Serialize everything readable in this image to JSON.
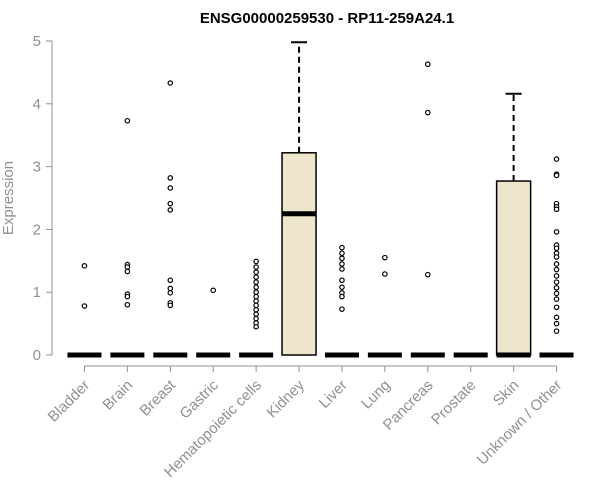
{
  "chart_data": {
    "type": "box",
    "title": "ENSG00000259530 - RP11-259A24.1",
    "xlabel": "",
    "ylabel": "Expression",
    "ylim": [
      0,
      5
    ],
    "yticks": [
      0,
      1,
      2,
      3,
      4,
      5
    ],
    "box_color": "#ede5cc",
    "categories": [
      "Bladder",
      "Brain",
      "Breast",
      "Gastric",
      "Hematopoietic cells",
      "Kidney",
      "Liver",
      "Lung",
      "Pancreas",
      "Prostate",
      "Skin",
      "Unknown / Other"
    ],
    "boxes": [
      {
        "name": "Bladder",
        "q1": 0,
        "median": 0,
        "q3": 0,
        "whisker_low": 0,
        "whisker_high": 0,
        "outliers": [
          1.42,
          0.78
        ]
      },
      {
        "name": "Brain",
        "q1": 0,
        "median": 0,
        "q3": 0,
        "whisker_low": 0,
        "whisker_high": 0,
        "outliers": [
          3.73,
          1.44,
          1.4,
          1.33,
          0.97,
          0.93,
          0.8
        ]
      },
      {
        "name": "Breast",
        "q1": 0,
        "median": 0,
        "q3": 0,
        "whisker_low": 0,
        "whisker_high": 0,
        "outliers": [
          4.33,
          2.82,
          2.66,
          2.41,
          2.31,
          1.19,
          1.06,
          0.99,
          0.83,
          0.79
        ]
      },
      {
        "name": "Gastric",
        "q1": 0,
        "median": 0,
        "q3": 0,
        "whisker_low": 0,
        "whisker_high": 0,
        "outliers": [
          1.03
        ]
      },
      {
        "name": "Hematopoietic cells",
        "q1": 0,
        "median": 0,
        "q3": 0,
        "whisker_low": 0,
        "whisker_high": 0,
        "outliers": [
          1.49,
          1.4,
          1.32,
          1.24,
          1.16,
          1.08,
          1.0,
          0.93,
          0.86,
          0.79,
          0.72,
          0.65,
          0.58,
          0.51,
          0.45
        ]
      },
      {
        "name": "Kidney",
        "q1": 0,
        "median": 2.25,
        "q3": 3.22,
        "whisker_low": 0,
        "whisker_high": 4.98,
        "outliers": []
      },
      {
        "name": "Liver",
        "q1": 0,
        "median": 0,
        "q3": 0,
        "whisker_low": 0,
        "whisker_high": 0,
        "outliers": [
          1.71,
          1.62,
          1.54,
          1.45,
          1.37,
          1.19,
          1.08,
          0.99,
          0.93,
          0.73
        ]
      },
      {
        "name": "Lung",
        "q1": 0,
        "median": 0,
        "q3": 0,
        "whisker_low": 0,
        "whisker_high": 0,
        "outliers": [
          1.55,
          1.29
        ]
      },
      {
        "name": "Pancreas",
        "q1": 0,
        "median": 0,
        "q3": 0,
        "whisker_low": 0,
        "whisker_high": 0,
        "outliers": [
          4.63,
          3.86,
          1.28
        ]
      },
      {
        "name": "Prostate",
        "q1": 0,
        "median": 0,
        "q3": 0,
        "whisker_low": 0,
        "whisker_high": 0,
        "outliers": []
      },
      {
        "name": "Skin",
        "q1": 0,
        "median": 0,
        "q3": 2.77,
        "whisker_low": 0,
        "whisker_high": 4.16,
        "outliers": []
      },
      {
        "name": "Unknown / Other",
        "q1": 0,
        "median": 0,
        "q3": 0,
        "whisker_low": 0,
        "whisker_high": 0,
        "outliers": [
          3.12,
          2.88,
          2.86,
          2.41,
          2.36,
          2.32,
          1.96,
          1.75,
          1.7,
          1.62,
          1.56,
          1.45,
          1.36,
          1.26,
          1.16,
          1.07,
          0.98,
          0.89,
          0.76,
          0.6,
          0.5,
          0.38
        ]
      }
    ]
  }
}
